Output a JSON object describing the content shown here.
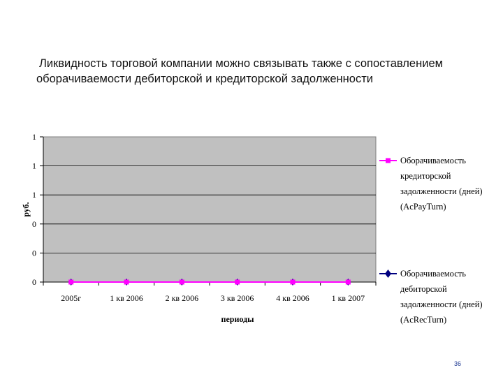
{
  "slide": {
    "heading_line1": "Ликвидность торговой компании можно связывать также с сопоставлением",
    "heading_line2": "оборачиваемости дебиторской и кредиторской задолженности",
    "page_number": "36"
  },
  "chart_data": {
    "type": "line",
    "categories": [
      "2005г",
      "1 кв 2006",
      "2 кв 2006",
      "3 кв 2006",
      "4 кв 2006",
      "1 кв 2007"
    ],
    "y_tick_labels": [
      "0",
      "0",
      "0",
      "1",
      "1",
      "1"
    ],
    "ylabel": "руб.",
    "xlabel": "периоды",
    "grid": true,
    "legend_position": "right",
    "plot_background": "#c0c0c0",
    "series": [
      {
        "name_lines": [
          "Оборачиваемость",
          "кредиторской",
          "задолженности (дней)",
          "(AcPayTurn)"
        ],
        "values": [
          0,
          0,
          0,
          0,
          0,
          0
        ],
        "color": "#ff00ff",
        "marker": "square"
      },
      {
        "name_lines": [
          "Оборачиваемость",
          "дебиторской",
          "задолженности (дней)",
          "(AcRecTurn)"
        ],
        "values": [
          0,
          0,
          0,
          0,
          0,
          0
        ],
        "color": "#000080",
        "marker": "diamond"
      }
    ]
  }
}
